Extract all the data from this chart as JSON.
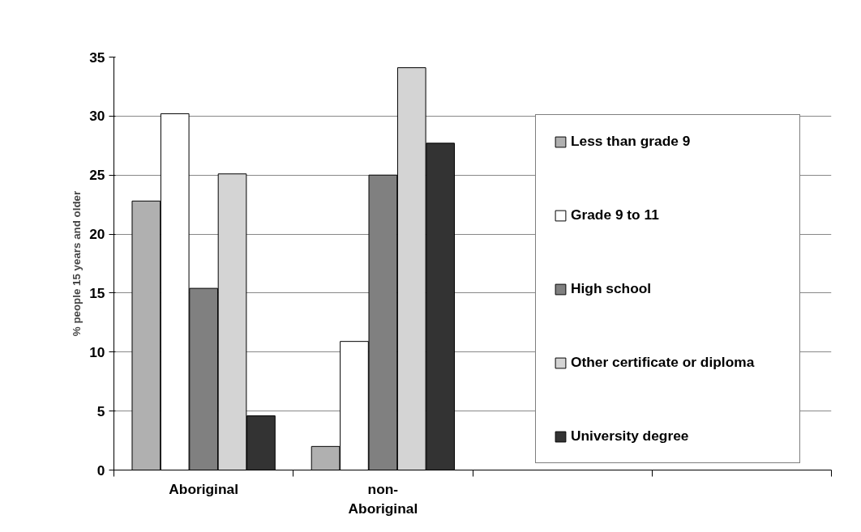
{
  "chart_data": {
    "type": "bar",
    "ylabel": "% people 15 years and older",
    "categories": [
      "Aboriginal",
      "non-Aboriginal",
      null,
      null
    ],
    "series": [
      {
        "name": "Less than grade 9",
        "color": "#b0b0b0",
        "values": [
          22.8,
          2.0,
          null,
          null
        ]
      },
      {
        "name": "Grade 9 to 11",
        "color": "#ffffff",
        "values": [
          30.2,
          10.9,
          null,
          null
        ]
      },
      {
        "name": "High school",
        "color": "#808080",
        "values": [
          15.4,
          25.0,
          null,
          null
        ]
      },
      {
        "name": "Other certificate or diploma",
        "color": "#d4d4d4",
        "values": [
          25.1,
          34.1,
          null,
          null
        ]
      },
      {
        "name": "University degree",
        "color": "#333333",
        "values": [
          4.6,
          27.7,
          null,
          null
        ]
      }
    ],
    "ylim": [
      0,
      35
    ],
    "yticks": [
      0,
      5,
      10,
      15,
      20,
      25,
      30,
      35
    ],
    "grid": "y",
    "legend": "right"
  }
}
